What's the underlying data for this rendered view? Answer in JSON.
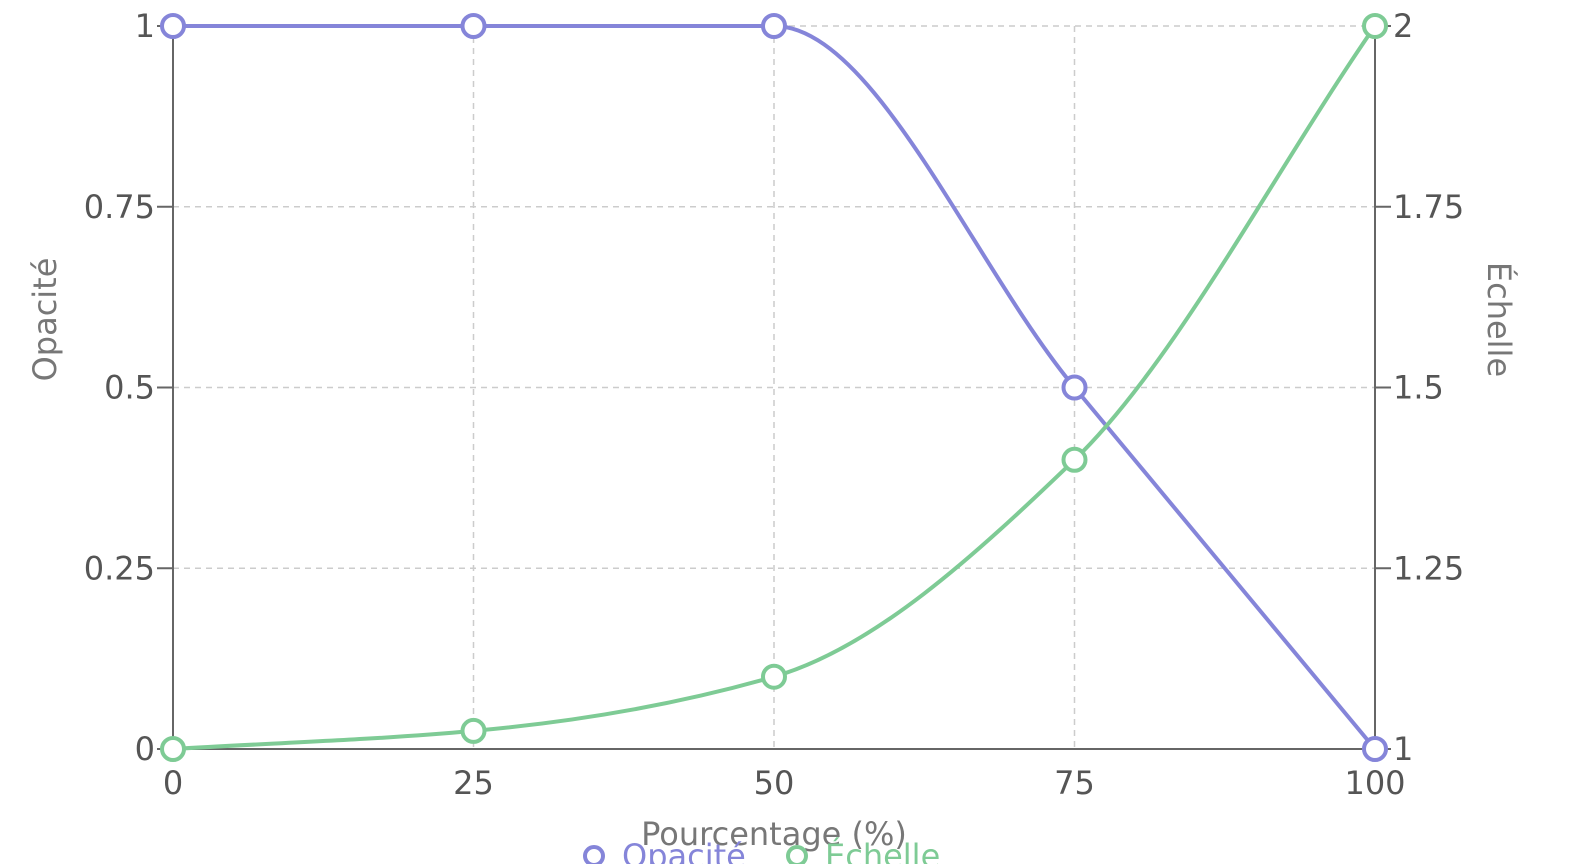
{
  "chart_data": {
    "type": "line",
    "xlabel": "Pourcentage (%)",
    "ylabel": "Opacité",
    "y2label": "Échelle",
    "x": [
      0,
      25,
      50,
      75,
      100
    ],
    "xticks": [
      "0",
      "25",
      "50",
      "75",
      "100"
    ],
    "xlim": [
      0,
      100
    ],
    "ylim": [
      0,
      1
    ],
    "yticks": [
      "0",
      "0.25",
      "0.5",
      "0.75",
      "1"
    ],
    "y2lim": [
      1,
      2
    ],
    "y2ticks": [
      "1",
      "1.25",
      "1.5",
      "1.75",
      "2"
    ],
    "grid": true,
    "legend_position": "bottom-center",
    "series": [
      {
        "name": "Opacité",
        "axis": "left",
        "color": "#8585d9",
        "values": [
          1,
          1,
          1,
          0.5,
          0
        ]
      },
      {
        "name": "Échelle",
        "axis": "right",
        "color": "#7ecb95",
        "values": [
          1,
          1.025,
          1.1,
          1.4,
          2
        ]
      }
    ]
  }
}
